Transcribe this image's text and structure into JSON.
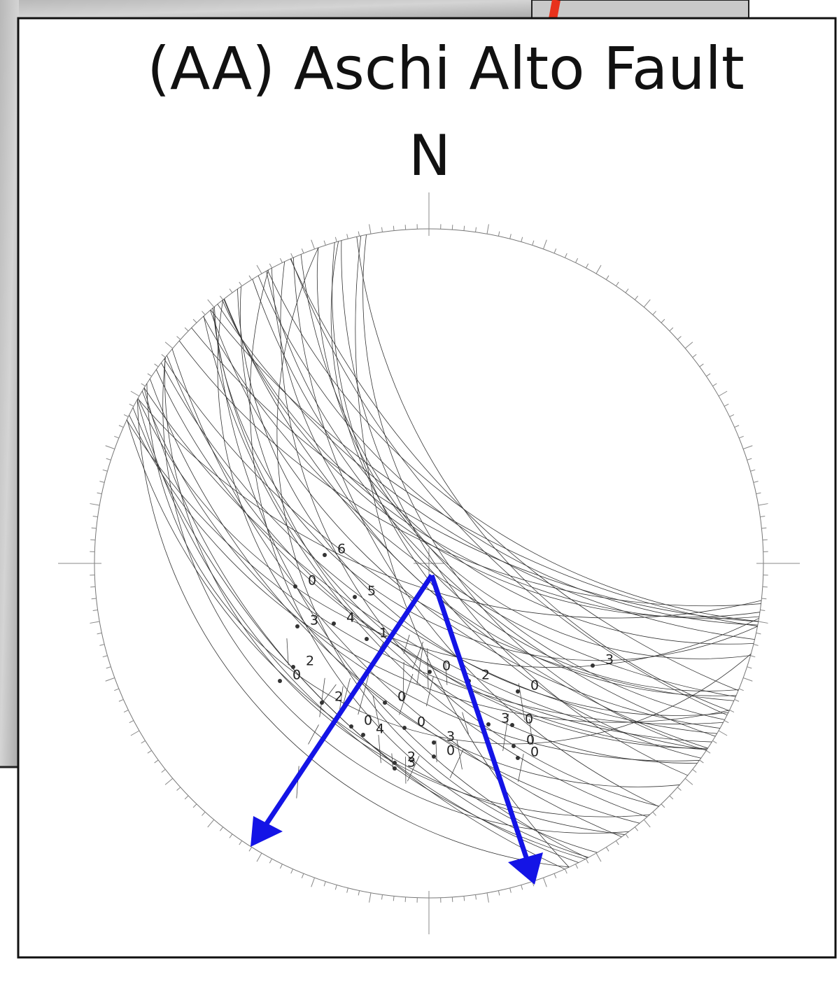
{
  "header": {
    "title": "(AA) Aschi Alto Fault",
    "north": "N"
  },
  "stereonet": {
    "labels": [
      "6",
      "0",
      "5",
      "4",
      "3",
      "1",
      "2",
      "0",
      "0",
      "2",
      "0",
      "0",
      "3",
      "3",
      "0",
      "0",
      "4",
      "0",
      "2",
      "3",
      "0",
      "0",
      "0",
      "2",
      "3"
    ]
  }
}
